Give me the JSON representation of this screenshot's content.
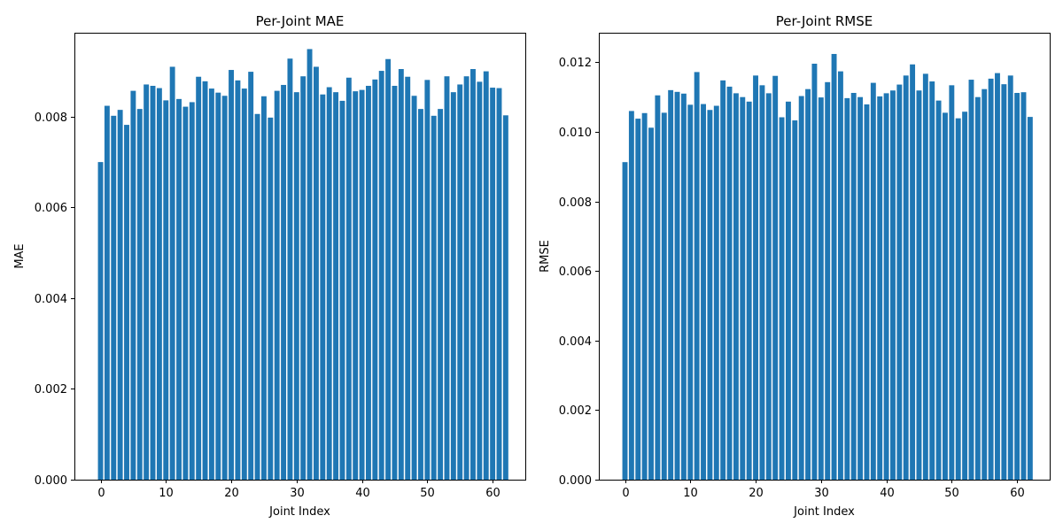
{
  "chart_data": [
    {
      "type": "bar",
      "title": "Per-Joint MAE",
      "xlabel": "Joint Index",
      "ylabel": "MAE",
      "color": "#1f77b4",
      "xlim": [
        -4,
        65
      ],
      "ylim": [
        0,
        0.00985
      ],
      "xticks": [
        0,
        10,
        20,
        30,
        40,
        50,
        60
      ],
      "xtick_labels": [
        "0",
        "10",
        "20",
        "30",
        "40",
        "50",
        "60"
      ],
      "yticks": [
        0,
        0.002,
        0.004,
        0.006,
        0.008
      ],
      "ytick_labels": [
        "0.000",
        "0.002",
        "0.004",
        "0.006",
        "0.008"
      ],
      "grid": false,
      "x": [
        0,
        1,
        2,
        3,
        4,
        5,
        6,
        7,
        8,
        9,
        10,
        11,
        12,
        13,
        14,
        15,
        16,
        17,
        18,
        19,
        20,
        21,
        22,
        23,
        24,
        25,
        26,
        27,
        28,
        29,
        30,
        31,
        32,
        33,
        34,
        35,
        36,
        37,
        38,
        39,
        40,
        41,
        42,
        43,
        44,
        45,
        46,
        47,
        48,
        49,
        50,
        51,
        52,
        53,
        54,
        55,
        56,
        57,
        58,
        59,
        60,
        61,
        62
      ],
      "values": [
        0.007,
        0.00824,
        0.00802,
        0.00815,
        0.00782,
        0.00857,
        0.00817,
        0.00871,
        0.00868,
        0.00863,
        0.00836,
        0.0091,
        0.00839,
        0.00822,
        0.00832,
        0.00888,
        0.00878,
        0.00862,
        0.00853,
        0.00846,
        0.00903,
        0.0088,
        0.00862,
        0.00899,
        0.00806,
        0.00845,
        0.00798,
        0.00857,
        0.0087,
        0.00928,
        0.00854,
        0.00889,
        0.00949,
        0.0091,
        0.00849,
        0.00865,
        0.00854,
        0.00835,
        0.00886,
        0.00856,
        0.00859,
        0.00868,
        0.00882,
        0.00901,
        0.00927,
        0.00868,
        0.00905,
        0.00888,
        0.00846,
        0.00817,
        0.00881,
        0.00802,
        0.00817,
        0.00889,
        0.00854,
        0.00871,
        0.00889,
        0.00905,
        0.00877,
        0.009,
        0.00864,
        0.00863,
        0.00803
      ]
    },
    {
      "type": "bar",
      "title": "Per-Joint RMSE",
      "xlabel": "Joint Index",
      "ylabel": "RMSE",
      "color": "#1f77b4",
      "xlim": [
        -4,
        65
      ],
      "ylim": [
        0,
        0.01285
      ],
      "xticks": [
        0,
        10,
        20,
        30,
        40,
        50,
        60
      ],
      "xtick_labels": [
        "0",
        "10",
        "20",
        "30",
        "40",
        "50",
        "60"
      ],
      "yticks": [
        0,
        0.002,
        0.004,
        0.006,
        0.008,
        0.01,
        0.012
      ],
      "ytick_labels": [
        "0.000",
        "0.002",
        "0.004",
        "0.006",
        "0.008",
        "0.010",
        "0.012"
      ],
      "grid": false,
      "x": [
        0,
        1,
        2,
        3,
        4,
        5,
        6,
        7,
        8,
        9,
        10,
        11,
        12,
        13,
        14,
        15,
        16,
        17,
        18,
        19,
        20,
        21,
        22,
        23,
        24,
        25,
        26,
        27,
        28,
        29,
        30,
        31,
        32,
        33,
        34,
        35,
        36,
        37,
        38,
        39,
        40,
        41,
        42,
        43,
        44,
        45,
        46,
        47,
        48,
        49,
        50,
        51,
        52,
        53,
        54,
        55,
        56,
        57,
        58,
        59,
        60,
        61,
        62
      ],
      "values": [
        0.00913,
        0.0106,
        0.01038,
        0.01054,
        0.01012,
        0.01105,
        0.01055,
        0.0112,
        0.01115,
        0.0111,
        0.01078,
        0.01172,
        0.0108,
        0.01063,
        0.01075,
        0.01148,
        0.0113,
        0.01111,
        0.011,
        0.01087,
        0.01162,
        0.01134,
        0.01111,
        0.01161,
        0.01042,
        0.01087,
        0.01033,
        0.01103,
        0.01123,
        0.01196,
        0.01099,
        0.01143,
        0.01224,
        0.01174,
        0.01097,
        0.01112,
        0.011,
        0.01079,
        0.01141,
        0.01102,
        0.01111,
        0.01119,
        0.01136,
        0.01162,
        0.01194,
        0.01119,
        0.01167,
        0.01145,
        0.0109,
        0.01055,
        0.01134,
        0.01039,
        0.01058,
        0.0115,
        0.011,
        0.01123,
        0.01153,
        0.01169,
        0.01137,
        0.01162,
        0.01112,
        0.01114,
        0.01043
      ]
    }
  ]
}
